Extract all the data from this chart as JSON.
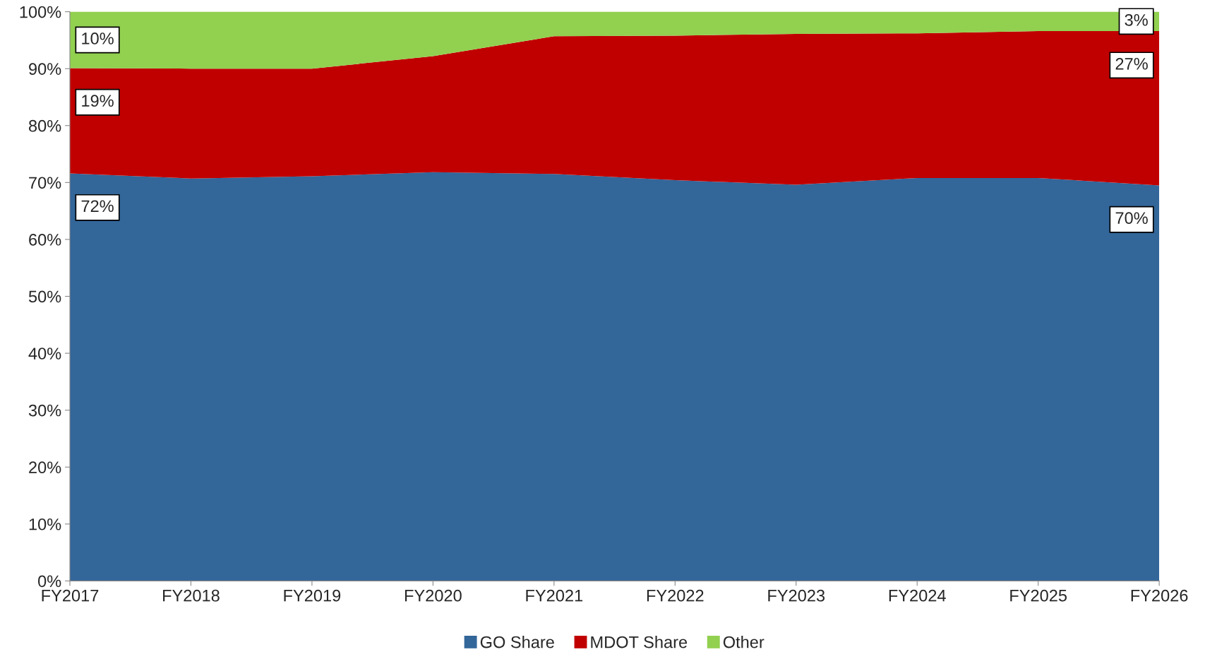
{
  "chart_data": {
    "type": "area",
    "stacked": true,
    "categories": [
      "FY2017",
      "FY2018",
      "FY2019",
      "FY2020",
      "FY2021",
      "FY2022",
      "FY2023",
      "FY2024",
      "FY2025",
      "FY2026"
    ],
    "series": [
      {
        "name": "GO Share",
        "color": "#336699",
        "values": [
          71.6,
          70.7,
          71.1,
          71.8,
          71.5,
          70.4,
          69.6,
          70.8,
          70.8,
          69.5
        ],
        "value_labels": [
          "72%",
          null,
          null,
          null,
          null,
          null,
          null,
          null,
          null,
          "70%"
        ]
      },
      {
        "name": "MDOT Share",
        "color": "#c00000",
        "values": [
          18.5,
          19.3,
          18.9,
          20.4,
          24.2,
          25.4,
          26.5,
          25.4,
          25.8,
          27.1
        ],
        "value_labels": [
          "19%",
          null,
          null,
          null,
          null,
          null,
          null,
          null,
          null,
          "27%"
        ]
      },
      {
        "name": "Other",
        "color": "#92d050",
        "values": [
          9.9,
          10.0,
          10.0,
          7.8,
          4.3,
          4.2,
          3.9,
          3.8,
          3.4,
          3.4
        ],
        "value_labels": [
          "10%",
          null,
          null,
          null,
          null,
          null,
          null,
          null,
          null,
          "3%"
        ]
      }
    ],
    "ylim": [
      0,
      100
    ],
    "yticks": [
      {
        "value": 0,
        "label": "0%"
      },
      {
        "value": 10,
        "label": "10%"
      },
      {
        "value": 20,
        "label": "20%"
      },
      {
        "value": 30,
        "label": "30%"
      },
      {
        "value": 40,
        "label": "40%"
      },
      {
        "value": 50,
        "label": "50%"
      },
      {
        "value": 60,
        "label": "60%"
      },
      {
        "value": 70,
        "label": "70%"
      },
      {
        "value": 80,
        "label": "80%"
      },
      {
        "value": 90,
        "label": "90%"
      },
      {
        "value": 100,
        "label": "100%"
      }
    ],
    "grid": false,
    "legend": "bottom"
  }
}
